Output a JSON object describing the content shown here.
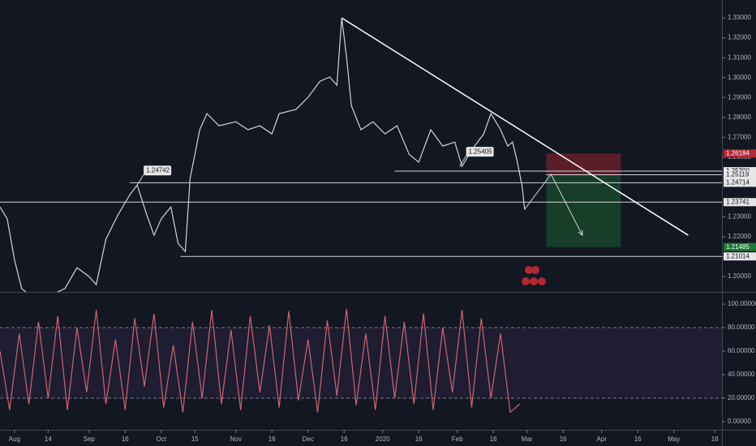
{
  "chart_data": [
    {
      "type": "line",
      "xlim": [
        -6,
        294
      ],
      "ylim": [
        1.1923,
        1.339
      ],
      "yticks": [
        {
          "value": 1.2,
          "label": "1.20000"
        },
        {
          "value": 1.21,
          "label": "1.21000"
        },
        {
          "value": 1.22,
          "label": "1.22000"
        },
        {
          "value": 1.23,
          "label": "1.23000"
        },
        {
          "value": 1.26,
          "label": "1.26000"
        },
        {
          "value": 1.27,
          "label": "1.27000"
        },
        {
          "value": 1.28,
          "label": "1.28000"
        },
        {
          "value": 1.29,
          "label": "1.29000"
        },
        {
          "value": 1.3,
          "label": "1.30000"
        },
        {
          "value": 1.31,
          "label": "1.31000"
        },
        {
          "value": 1.32,
          "label": "1.32000"
        },
        {
          "value": 1.33,
          "label": "1.33000"
        }
      ],
      "series": [
        {
          "color": "#d1d4dc",
          "x": [
            -6,
            -3,
            0,
            3,
            7,
            14,
            21,
            26,
            31,
            34,
            38,
            43,
            48,
            51,
            55,
            58,
            61,
            65,
            68,
            71,
            73,
            77,
            80,
            85,
            92,
            97,
            102,
            107,
            110,
            117,
            122,
            127,
            131,
            134,
            136,
            138,
            140,
            144,
            149,
            154,
            159,
            164,
            168,
            173,
            178,
            183,
            186,
            190,
            195,
            198,
            202,
            205,
            207,
            209,
            211,
            212
          ],
          "values": [
            1.235,
            1.229,
            1.2086,
            1.194,
            1.19,
            1.19,
            1.194,
            1.2045,
            1.2,
            1.196,
            1.2188,
            1.231,
            1.2412,
            1.246,
            1.231,
            1.2208,
            1.229,
            1.235,
            1.2167,
            1.2126,
            1.2493,
            1.2738,
            1.2819,
            1.2758,
            1.2778,
            1.2738,
            1.2758,
            1.2717,
            1.2819,
            1.284,
            1.2901,
            1.2982,
            1.3003,
            1.2962,
            1.33,
            1.3104,
            1.286,
            1.2738,
            1.2778,
            1.2717,
            1.2758,
            1.2615,
            1.2575,
            1.2738,
            1.2656,
            1.2676,
            1.2554,
            1.2636,
            1.2717,
            1.2819,
            1.2738,
            1.2656,
            1.2676,
            1.2575,
            1.2452,
            1.2338
          ]
        }
      ],
      "price_lines": [
        {
          "value": 1.26184,
          "label": "1.26184",
          "color": "#b22833"
        },
        {
          "value": 1.253,
          "label": "1.25300",
          "from": 158
        },
        {
          "value": 1.25119,
          "label": "1.25119",
          "from": 221
        },
        {
          "value": 1.24714,
          "label": "1.24714",
          "from": 48
        },
        {
          "value": 1.23741,
          "label": "1.23741",
          "from": -6
        },
        {
          "value": 1.21485,
          "label": "1.21485",
          "color": "#1b7a35"
        },
        {
          "value": 1.21014,
          "label": "1.21014",
          "from": 69
        }
      ],
      "annotations": [
        {
          "text": "1.24742",
          "x": 51,
          "y": 1.246
        },
        {
          "text": "1.25405",
          "x": 185,
          "y": 1.2554
        }
      ],
      "trendline": {
        "x": [
          136,
          280
        ],
        "y": [
          1.33,
          1.2208
        ]
      },
      "projection": {
        "x": [
          212,
          223,
          236
        ],
        "y": [
          1.2338,
          1.2514,
          1.2208
        ]
      },
      "position": {
        "from": 221,
        "to": 252,
        "entry": 1.25119,
        "stop": 1.26184,
        "target": 1.21485
      }
    },
    {
      "type": "line",
      "xlim": [
        -6,
        294
      ],
      "ylim": [
        -6.9,
        109
      ],
      "xticks": [
        {
          "value": 0,
          "label": "Aug"
        },
        14,
        {
          "value": 31,
          "label": "Sep"
        },
        {
          "value": 46,
          "label": "16"
        },
        {
          "value": 61,
          "label": "Oct"
        },
        {
          "value": 75,
          "label": "15"
        },
        {
          "value": 92,
          "label": "Nov"
        },
        {
          "value": 107,
          "label": "16"
        },
        {
          "value": 122,
          "label": "Dec"
        },
        {
          "value": 137,
          "label": "16"
        },
        {
          "value": 153,
          "label": "2020"
        },
        {
          "value": 168,
          "label": "16"
        },
        {
          "value": 184,
          "label": "Feb"
        },
        {
          "value": 199,
          "label": "16"
        },
        {
          "value": 213,
          "label": "Mar"
        },
        {
          "value": 228,
          "label": "16"
        },
        {
          "value": 244,
          "label": "Apr"
        },
        {
          "value": 259,
          "label": "16"
        },
        {
          "value": 274,
          "label": "May"
        },
        {
          "value": 291,
          "label": "18"
        }
      ],
      "yticks": [
        {
          "value": 0,
          "label": "0.00000"
        },
        {
          "value": 20,
          "label": "20.00000"
        },
        {
          "value": 40,
          "label": "40.00000"
        },
        {
          "value": 60,
          "label": "60.00000"
        },
        {
          "value": 80,
          "label": "80.00000"
        },
        {
          "value": 100,
          "label": "100.00000"
        }
      ],
      "bands": [
        20,
        80
      ],
      "series": [
        {
          "color": "#d0646e",
          "x": [
            -6,
            -2,
            2,
            6,
            10,
            14,
            18,
            22,
            26,
            30,
            34,
            38,
            42,
            46,
            50,
            54,
            58,
            62,
            66,
            70,
            74,
            78,
            82,
            86,
            90,
            94,
            98,
            102,
            106,
            110,
            114,
            118,
            122,
            126,
            130,
            134,
            138,
            142,
            146,
            150,
            154,
            158,
            162,
            166,
            170,
            174,
            178,
            182,
            186,
            190,
            194,
            198,
            202,
            206,
            210
          ],
          "values": [
            60,
            10,
            75,
            15,
            85,
            20,
            90,
            10,
            80,
            25,
            95,
            15,
            70,
            10,
            88,
            30,
            92,
            12,
            65,
            8,
            85,
            20,
            95,
            15,
            78,
            10,
            90,
            25,
            82,
            12,
            94,
            18,
            70,
            8,
            86,
            22,
            96,
            14,
            75,
            10,
            90,
            20,
            85,
            15,
            92,
            10,
            80,
            25,
            95,
            12,
            88,
            20,
            75,
            8,
            15
          ]
        }
      ]
    }
  ]
}
